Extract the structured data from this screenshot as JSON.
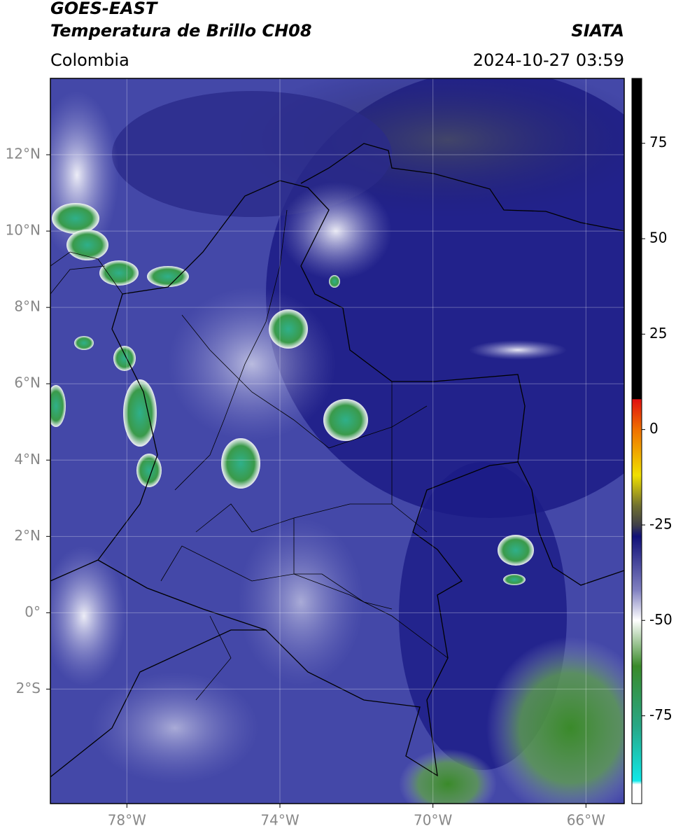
{
  "map": {
    "title": "GOES-EAST",
    "subtitle": "Temperatura de Brillo CH08",
    "source": "SIATA",
    "region": "Colombia",
    "timestamp": "2024-10-27 03:59",
    "lonlim": [
      -80,
      -65
    ],
    "latlim": [
      -5,
      14
    ],
    "lonticks": [
      {
        "value": -78,
        "label": "78°W"
      },
      {
        "value": -74,
        "label": "74°W"
      },
      {
        "value": -70,
        "label": "70°W"
      },
      {
        "value": -66,
        "label": "66°W"
      }
    ],
    "latticks": [
      {
        "value": 12,
        "label": "12°N"
      },
      {
        "value": 10,
        "label": "10°N"
      },
      {
        "value": 8,
        "label": "8°N"
      },
      {
        "value": 6,
        "label": "6°N"
      },
      {
        "value": 4,
        "label": "4°N"
      },
      {
        "value": 2,
        "label": "2°N"
      },
      {
        "value": 0,
        "label": "0°"
      },
      {
        "value": -2,
        "label": "2°S"
      }
    ],
    "grid": true,
    "colorbar": {
      "lim": [
        -98,
        92
      ],
      "ticks": [
        75,
        50,
        25,
        0,
        -25,
        -50,
        -75
      ],
      "colormap": [
        {
          "value": 92,
          "color": "#000000"
        },
        {
          "value": 8,
          "color": "#000000"
        },
        {
          "value": 7.9,
          "color": "#e01010"
        },
        {
          "value": 0,
          "color": "#f07000"
        },
        {
          "value": -12,
          "color": "#f0e000"
        },
        {
          "value": -20,
          "color": "#707030"
        },
        {
          "value": -25,
          "color": "#404048"
        },
        {
          "value": -28,
          "color": "#101078"
        },
        {
          "value": -42,
          "color": "#8080c0"
        },
        {
          "value": -50,
          "color": "#ffffff"
        },
        {
          "value": -62,
          "color": "#3a8a2a"
        },
        {
          "value": -78,
          "color": "#28a888"
        },
        {
          "value": -92,
          "color": "#10e8e8"
        },
        {
          "value": -93,
          "color": "#ffffff"
        },
        {
          "value": -98,
          "color": "#ffffff"
        }
      ]
    }
  }
}
